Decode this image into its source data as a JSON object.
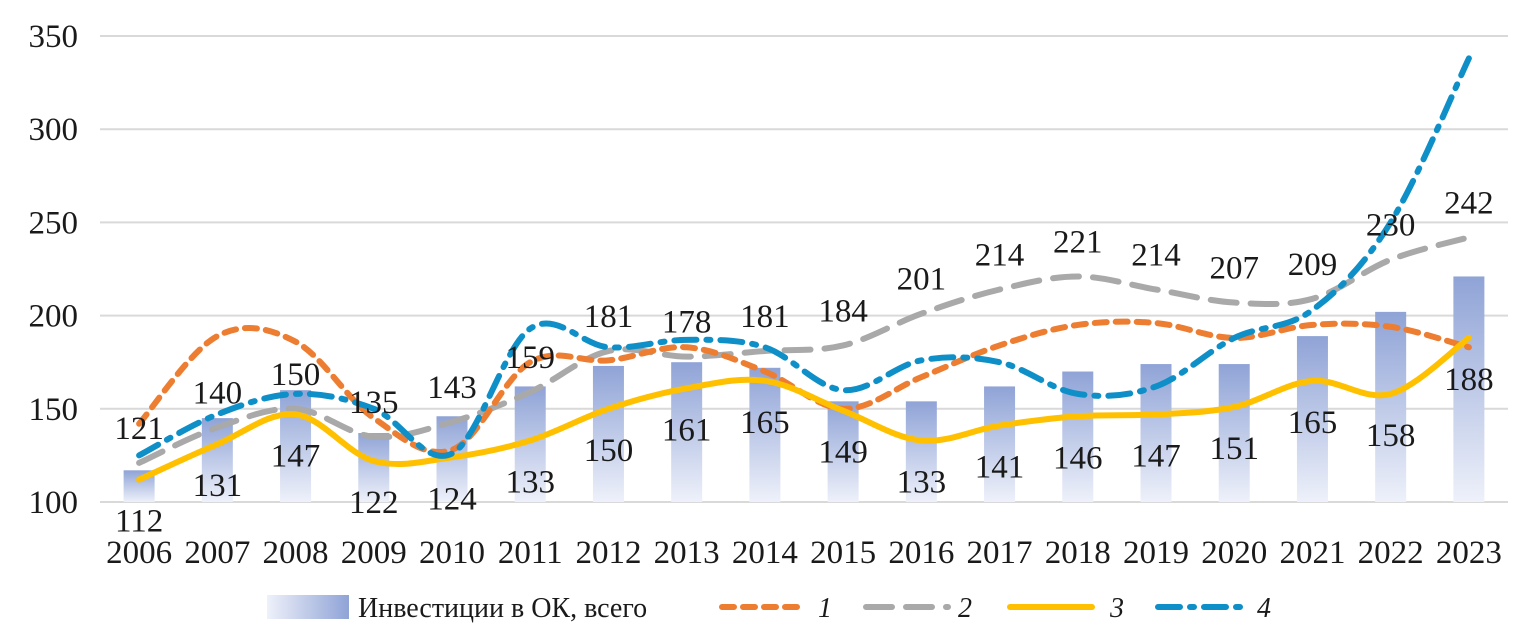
{
  "chart_data": {
    "type": "bar",
    "title": "",
    "xlabel": "",
    "ylabel": "",
    "ylim": [
      100,
      350
    ],
    "y_ticks": [
      100,
      150,
      200,
      250,
      300,
      350
    ],
    "grid": true,
    "legend_position": "bottom",
    "categories": [
      "2006",
      "2007",
      "2008",
      "2009",
      "2010",
      "2011",
      "2012",
      "2013",
      "2014",
      "2015",
      "2016",
      "2017",
      "2018",
      "2019",
      "2020",
      "2021",
      "2022",
      "2023"
    ],
    "bar_series": {
      "name": "Инвестиции в ОК, всего",
      "color": "#8fa3d6",
      "values": [
        117,
        145,
        160,
        137,
        146,
        162,
        173,
        175,
        172,
        154,
        154,
        162,
        170,
        174,
        174,
        189,
        202,
        221
      ]
    },
    "line_series": [
      {
        "name": "1",
        "color": "#ed7d31",
        "style": "dash",
        "values": [
          142,
          189,
          186,
          145,
          128,
          175,
          176,
          183,
          170,
          150,
          167,
          184,
          195,
          196,
          188,
          195,
          194,
          183
        ],
        "labels": []
      },
      {
        "name": "2",
        "color": "#a9a9a9",
        "style": "longdash",
        "values": [
          121,
          140,
          150,
          135,
          143,
          159,
          181,
          178,
          181,
          184,
          201,
          214,
          221,
          214,
          207,
          209,
          230,
          242
        ],
        "labels": [
          "121",
          "140",
          "150",
          "135",
          "143",
          "159",
          "181",
          "178",
          "181",
          "184",
          "201",
          "214",
          "221",
          "214",
          "207",
          "209",
          "230",
          "242"
        ]
      },
      {
        "name": "3",
        "color": "#ffc000",
        "style": "solid",
        "values": [
          112,
          131,
          147,
          122,
          124,
          133,
          150,
          161,
          165,
          149,
          133,
          141,
          146,
          147,
          151,
          165,
          158,
          188
        ],
        "labels": [
          "112",
          "131",
          "147",
          "122",
          "124",
          "133",
          "150",
          "161",
          "165",
          "149",
          "133",
          "141",
          "146",
          "147",
          "151",
          "165",
          "158",
          "188"
        ]
      },
      {
        "name": "4",
        "color": "#0f8fc7",
        "style": "dashdot",
        "values": [
          125,
          147,
          158,
          150,
          126,
          193,
          183,
          187,
          183,
          160,
          176,
          175,
          158,
          162,
          188,
          203,
          250,
          338
        ],
        "labels": []
      }
    ]
  }
}
